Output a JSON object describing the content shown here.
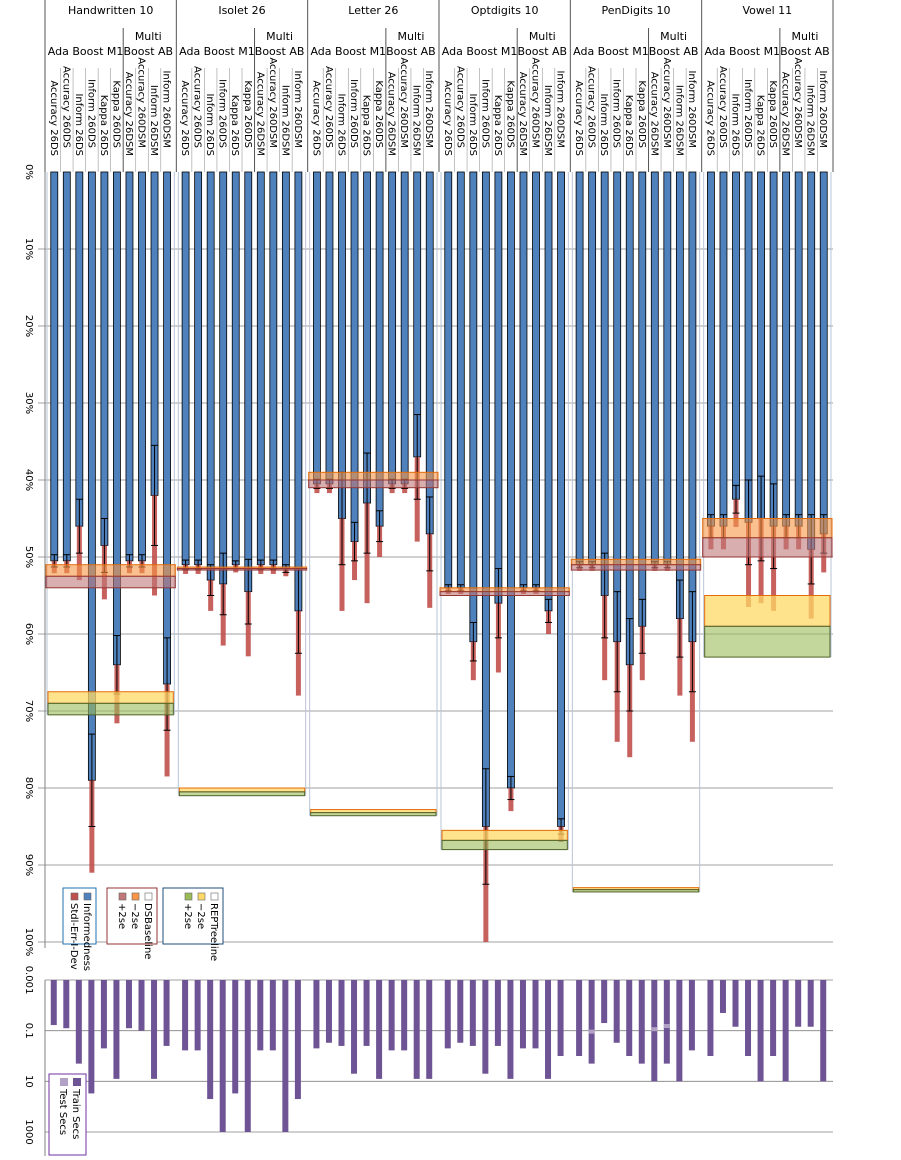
{
  "chart_data": {
    "type": "bar",
    "title": "",
    "orientation": "inverted (0% at top, values grow downward)",
    "datasets": [
      "Handwritten 10",
      "Isolet 26",
      "Letter 26",
      "Optdigits 10",
      "PenDigits 10",
      "Vowel 11"
    ],
    "algorithm_groups": [
      {
        "name_line1": "",
        "name_line2": "Ada Boost M1",
        "count": 6
      },
      {
        "name_line1": "Multi",
        "name_line2": "Boost AB",
        "count": 4
      }
    ],
    "bar_labels": [
      "Accuracy 26DS",
      "Accuracy 260DS",
      "Inform 26DS",
      "Inform 260DS",
      "Kappa 26DS",
      "Kappa 260DS",
      "Accuracy 26DSM",
      "Accuracy 260DSM",
      "Inform 26DSM",
      "Inform 260DSM"
    ],
    "top_panel": {
      "y_axis": {
        "min": 0,
        "max": 100,
        "ticks": [
          "0%",
          "10%",
          "20%",
          "30%",
          "40%",
          "50%",
          "60%",
          "70%",
          "80%",
          "90%",
          "100%"
        ]
      },
      "legend": [
        {
          "group": "Informedness",
          "items": [
            {
              "label": "Informedness",
              "color": "#4f81bd"
            },
            {
              "label": "Stdl-Err-I-Dev",
              "color": "#c0504d"
            }
          ]
        },
        {
          "group": "DSBaseline",
          "items": [
            {
              "label": "DSBaseline",
              "color": "#ffffff"
            },
            {
              "label": "−2se",
              "color": "#f79646"
            },
            {
              "label": "+2se",
              "color": "#c0787a"
            }
          ]
        },
        {
          "group": "REPTreeline",
          "items": [
            {
              "label": "REPTreeline",
              "color": "#ffffff"
            },
            {
              "label": "−2se",
              "color": "#ffd966"
            },
            {
              "label": "+2se",
              "color": "#9bbb59"
            }
          ]
        }
      ],
      "series": {
        "informedness": [
          [
            50.5,
            50.5,
            46.0,
            79.0,
            48.5,
            64.0,
            50.5,
            50.5,
            42.0,
            66.5
          ],
          [
            51.0,
            51.0,
            53.0,
            53.5,
            51.0,
            54.5,
            51.0,
            51.0,
            51.5,
            57.0
          ],
          [
            40.5,
            40.5,
            45.0,
            48.0,
            43.0,
            46.0,
            40.5,
            40.5,
            37.0,
            47.0
          ],
          [
            54.0,
            54.0,
            61.0,
            85.0,
            56.0,
            80.0,
            54.0,
            54.0,
            57.0,
            85.0
          ],
          [
            51.0,
            51.0,
            55.0,
            61.0,
            64.0,
            59.0,
            51.0,
            51.0,
            58.0,
            61.0
          ],
          [
            46.0,
            46.0,
            42.5,
            45.5,
            45.0,
            46.0,
            46.0,
            46.0,
            49.0,
            47.0
          ]
        ],
        "stderr": [
          [
            0.8,
            0.8,
            3.5,
            6.0,
            3.5,
            3.8,
            0.8,
            0.8,
            6.5,
            6.0
          ],
          [
            0.6,
            0.6,
            2.0,
            4.0,
            0.5,
            4.2,
            0.6,
            0.6,
            0.5,
            5.5
          ],
          [
            0.6,
            0.6,
            6.0,
            2.5,
            6.5,
            2.0,
            0.6,
            0.6,
            5.5,
            4.8
          ],
          [
            0.4,
            0.4,
            2.5,
            7.5,
            4.5,
            1.5,
            0.4,
            0.4,
            1.5,
            1.0
          ],
          [
            0.4,
            0.4,
            5.5,
            6.5,
            6.0,
            3.5,
            0.4,
            0.4,
            5.0,
            6.5
          ],
          [
            1.5,
            1.5,
            1.8,
            5.5,
            5.5,
            5.5,
            1.5,
            1.5,
            4.5,
            2.5
          ]
        ],
        "ds_baseline": [
          {
            "value": 52.5,
            "minus2se": 51.0,
            "plus2se": 54.0
          },
          {
            "value": 51.5,
            "minus2se": 51.5,
            "plus2se": 51.5
          },
          {
            "value": 40.0,
            "minus2se": 39.0,
            "plus2se": 41.0
          },
          {
            "value": 54.5,
            "minus2se": 54.0,
            "plus2se": 55.0
          },
          {
            "value": 51.0,
            "minus2se": 50.3,
            "plus2se": 51.7
          },
          {
            "value": 47.5,
            "minus2se": 45.0,
            "plus2se": 50.0
          }
        ],
        "reptree_line": [
          {
            "value": 69.0,
            "minus2se": 67.5,
            "plus2se": 70.5
          },
          {
            "value": 80.5,
            "minus2se": 80.0,
            "plus2se": 81.0
          },
          {
            "value": 83.2,
            "minus2se": 82.8,
            "plus2se": 83.6
          },
          {
            "value": 86.8,
            "minus2se": 85.5,
            "plus2se": 88.0
          },
          {
            "value": 93.2,
            "minus2se": 93.0,
            "plus2se": 93.5
          },
          {
            "value": 59.0,
            "minus2se": 55.0,
            "plus2se": 63.0
          }
        ]
      }
    },
    "bottom_panel": {
      "y_axis": {
        "scale": "log",
        "min": 0.001,
        "max": 1000,
        "ticks": [
          "0.001",
          "0.1",
          "10",
          "1000"
        ]
      },
      "legend": [
        {
          "label": "Train Secs",
          "color": "#6e5494"
        },
        {
          "label": "Test Secs",
          "color": "#b3a2c7"
        }
      ],
      "train_secs": [
        [
          0.06,
          0.08,
          2,
          30,
          0.5,
          8,
          0.08,
          0.1,
          8,
          0.4
        ],
        [
          0.6,
          0.6,
          50,
          1000,
          30,
          1000,
          0.6,
          0.6,
          1000,
          50
        ],
        [
          0.5,
          0.3,
          0.4,
          5,
          0.4,
          8,
          0.6,
          0.6,
          8,
          8
        ],
        [
          0.5,
          0.3,
          0.4,
          5,
          0.4,
          8,
          0.5,
          0.5,
          8,
          1
        ],
        [
          1,
          2,
          0.05,
          0.3,
          1,
          2,
          10,
          2,
          10,
          0.6
        ],
        [
          1,
          0.02,
          0.07,
          1,
          10,
          1,
          10,
          0.07,
          0.07,
          10
        ]
      ],
      "test_secs": [
        [
          0.001,
          0.001,
          0.001,
          0.001,
          0.001,
          0.001,
          0.001,
          0.001,
          0.001,
          0.001
        ],
        [
          0.001,
          0.001,
          0.001,
          0.001,
          0.001,
          0.001,
          0.001,
          0.001,
          0.001,
          0.001
        ],
        [
          0.001,
          0.001,
          0.001,
          0.001,
          0.001,
          0.001,
          0.001,
          0.001,
          0.001,
          0.001
        ],
        [
          0.001,
          0.001,
          0.001,
          0.001,
          0.001,
          0.001,
          0.001,
          0.001,
          0.001,
          0.001
        ],
        [
          0.001,
          0.1,
          0.001,
          0.001,
          0.001,
          0.001,
          0.08,
          0.06,
          0.001,
          0.001
        ],
        [
          0.001,
          0.001,
          0.001,
          0.001,
          0.001,
          0.001,
          0.001,
          0.001,
          0.001,
          0.001
        ]
      ]
    },
    "colors": {
      "inform": "#4f81bd",
      "stderr": "#c0504d",
      "ds_minus": "#f79646",
      "ds_plus": "#c0787a",
      "ds_border": "#943634",
      "rep_minus": "#ffd966",
      "rep_plus": "#9bbb59",
      "rep_border_minus": "#e36c09",
      "rep_border_plus": "#4f6228",
      "train": "#6e5494",
      "test": "#b3a2c7",
      "grid": "#808080",
      "group_line": "#b8c4d6"
    }
  }
}
